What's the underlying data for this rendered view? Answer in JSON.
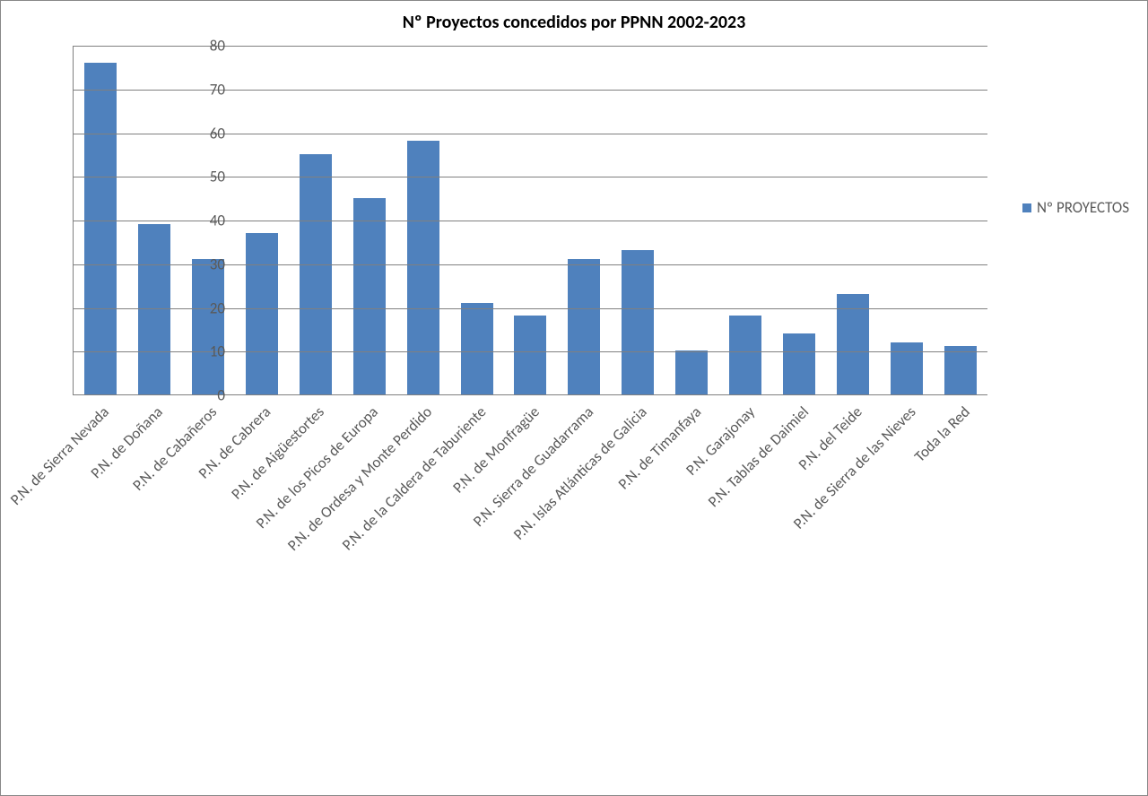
{
  "chart": {
    "type": "bar",
    "title": "Nº Proyectos concedidos por PPNN 2002-2023",
    "title_fontsize": 20,
    "title_color": "#000000",
    "background_color": "#ffffff",
    "border_color": "#888888",
    "grid_color": "#808080",
    "axis_color": "#808080",
    "label_color": "#595959",
    "label_fontsize": 17,
    "xlabel_fontsize": 17,
    "bar_color": "#4f81bd",
    "bar_width": 0.6,
    "ylim": [
      0,
      80
    ],
    "ytick_step": 10,
    "yticks": [
      0,
      10,
      20,
      30,
      40,
      50,
      60,
      70,
      80
    ],
    "categories": [
      "P.N. de Sierra Nevada",
      "P.N. de Doñana",
      "P.N. de Cabañeros",
      "P.N. de Cabrera",
      "P.N. de Aigüestortes",
      "P.N. de los Picos de Europa",
      "P.N. de Ordesa y Monte Perdido",
      "P.N. de la Caldera de Taburiente",
      "P.N. de Monfragüe",
      "P.N. Sierra de Guadarrama",
      "P.N. Islas Atlánticas de Galicia",
      "P.N. de Timanfaya",
      "P.N. Garajonay",
      "P.N. Tablas de Daimiel",
      "P.N. del Teide",
      "P.N. de Sierra de las Nieves",
      "Toda la Red"
    ],
    "values": [
      76,
      39,
      31,
      37,
      55,
      45,
      58,
      21,
      18,
      31,
      33,
      10,
      18,
      14,
      23,
      12,
      11
    ],
    "legend": {
      "label": "Nº PROYECTOS",
      "swatch_color": "#4f81bd",
      "fontsize": 17,
      "position": "right"
    }
  }
}
